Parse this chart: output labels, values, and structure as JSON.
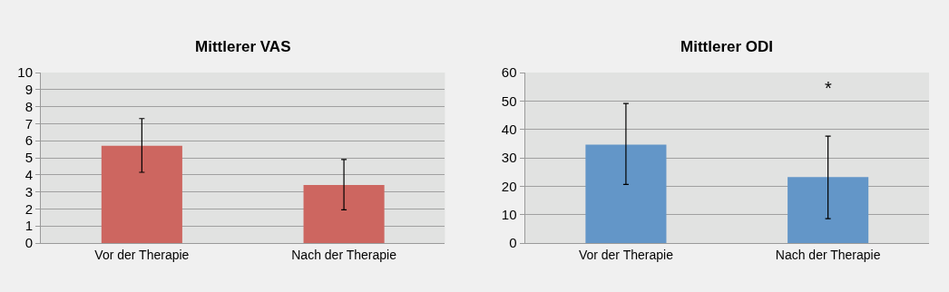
{
  "chart_data": [
    {
      "type": "bar",
      "title": "Mittlerer VAS",
      "categories": [
        "Vor der Therapie",
        "Nach der Therapie"
      ],
      "values": [
        5.7,
        3.4
      ],
      "color": "#cd6660",
      "errors": [
        [
          4.15,
          7.3
        ],
        [
          1.95,
          4.9
        ]
      ],
      "ylim": [
        0,
        10
      ],
      "yticks": [
        0,
        1,
        2,
        3,
        4,
        5,
        6,
        7,
        8,
        9,
        10
      ],
      "grid": "y",
      "legend": false
    },
    {
      "type": "bar",
      "title": "Mittlerer ODI",
      "categories": [
        "Vor der Therapie",
        "Nach der Therapie"
      ],
      "values": [
        34.6,
        23.2
      ],
      "color": "#6396c8",
      "errors": [
        [
          20.6,
          49.1
        ],
        [
          8.6,
          37.6
        ]
      ],
      "ylim": [
        0,
        60
      ],
      "yticks": [
        0,
        10,
        20,
        30,
        40,
        50,
        60
      ],
      "grid": "y",
      "legend": false,
      "annotations": [
        "*"
      ]
    }
  ]
}
